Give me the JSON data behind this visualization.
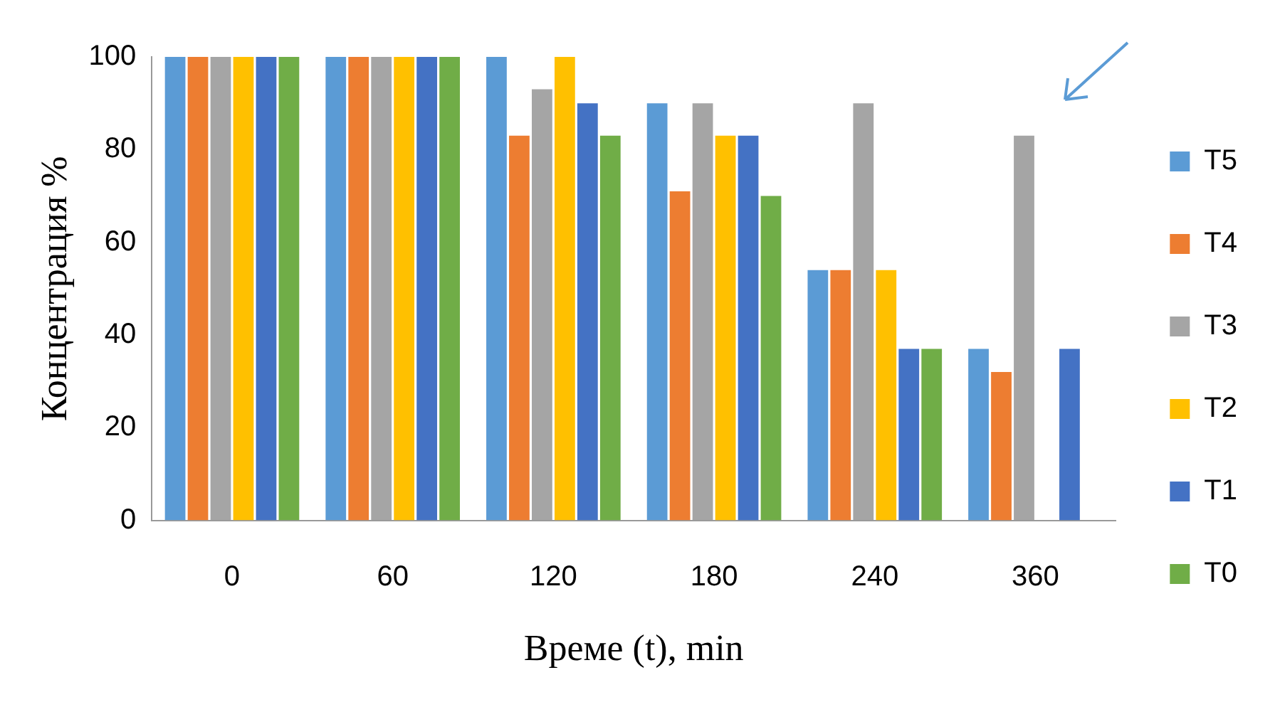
{
  "chart_data": {
    "type": "bar",
    "xlabel": "Време (t), min",
    "ylabel": "Концентрация %",
    "categories": [
      "0",
      "60",
      "120",
      "180",
      "240",
      "360"
    ],
    "series": [
      {
        "name": "T5",
        "color": "#5b9bd5",
        "values": [
          100,
          100,
          100,
          90,
          54,
          37
        ]
      },
      {
        "name": "T4",
        "color": "#ed7d31",
        "values": [
          100,
          100,
          83,
          71,
          54,
          32
        ]
      },
      {
        "name": "T3",
        "color": "#a5a5a5",
        "values": [
          100,
          100,
          93,
          90,
          90,
          83
        ]
      },
      {
        "name": "T2",
        "color": "#ffc000",
        "values": [
          100,
          100,
          100,
          83,
          54,
          0
        ]
      },
      {
        "name": "T1",
        "color": "#4472c4",
        "values": [
          100,
          100,
          90,
          83,
          37,
          37
        ]
      },
      {
        "name": "T0",
        "color": "#70ad47",
        "values": [
          100,
          100,
          83,
          70,
          37,
          0
        ]
      }
    ],
    "ylim": [
      0,
      100
    ],
    "yticks": [
      0,
      20,
      40,
      60,
      80,
      100
    ],
    "grid": false,
    "legend": "right"
  }
}
